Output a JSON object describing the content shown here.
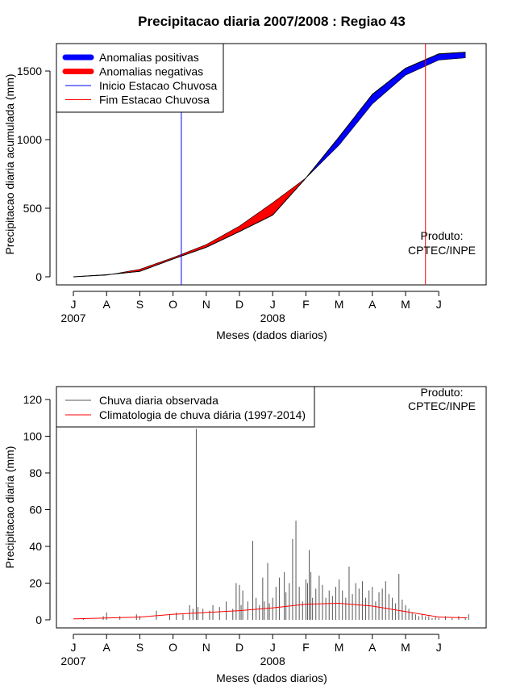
{
  "chart_data": [
    {
      "type": "area",
      "title": "Precipitacao diaria 2007/2008 : Regiao 43",
      "xlabel": "Meses (dados diarios)",
      "ylabel": "Precipitacao diaria acumulada (mm)",
      "ylim": [
        -30,
        1680
      ],
      "yticks": [
        0,
        500,
        1000,
        1500
      ],
      "xticks": [
        "J",
        "A",
        "S",
        "O",
        "N",
        "D",
        "J",
        "F",
        "M",
        "A",
        "M",
        "J"
      ],
      "year_labels": [
        {
          "text": "2007",
          "month_index": 0
        },
        {
          "text": "2008",
          "month_index": 6
        }
      ],
      "legend": {
        "position": "top-left",
        "entries": [
          {
            "label": "Anomalias positivas",
            "color": "#0000ff",
            "style": "thick"
          },
          {
            "label": "Anomalias negativas",
            "color": "#ff0000",
            "style": "thick"
          },
          {
            "label": "Inicio Estacao Chuvosa",
            "color": "#0000ff",
            "style": "thin"
          },
          {
            "label": "Fim Estacao Chuvosa",
            "color": "#ff0000",
            "style": "thin"
          }
        ]
      },
      "annotation": {
        "line1": "Produto:",
        "line2": "CPTEC/INPE",
        "position": "right"
      },
      "rainy_season_start_month": 3.25,
      "rainy_season_end_month": 10.6,
      "month_axis": [
        0,
        1,
        2,
        3,
        4,
        5,
        6,
        7,
        8,
        9,
        10,
        11,
        12
      ],
      "observed_cumulative_mm": [
        0,
        15,
        40,
        130,
        215,
        330,
        450,
        720,
        1020,
        1330,
        1520,
        1625,
        1640
      ],
      "climatology_cumulative_mm": [
        0,
        12,
        55,
        140,
        235,
        370,
        540,
        720,
        960,
        1260,
        1470,
        1580,
        1600
      ]
    },
    {
      "type": "bar",
      "xlabel": "Meses (dados diarios)",
      "ylabel": "Precipitacao diaria (mm)",
      "ylim": [
        -4,
        128
      ],
      "yticks": [
        0,
        20,
        40,
        60,
        80,
        100,
        120
      ],
      "xticks": [
        "J",
        "A",
        "S",
        "O",
        "N",
        "D",
        "J",
        "F",
        "M",
        "A",
        "M",
        "J"
      ],
      "year_labels": [
        {
          "text": "2007",
          "month_index": 0
        },
        {
          "text": "2008",
          "month_index": 6
        }
      ],
      "legend": {
        "position": "top-left",
        "entries": [
          {
            "label": "Chuva diaria observada",
            "color": "#555555"
          },
          {
            "label": "Climatologia de chuva diária (1997-2014)",
            "color": "#ff0000"
          }
        ]
      },
      "annotation": {
        "line1": "Produto:",
        "line2": "CPTEC/INPE",
        "position": "top-right"
      },
      "series": [
        {
          "name": "Chuva diaria observada",
          "month_positions": [
            0.3,
            0.9,
            1.0,
            1.4,
            1.9,
            2.0,
            2.5,
            2.9,
            3.1,
            3.3,
            3.5,
            3.6,
            3.7,
            3.75,
            3.9,
            4.1,
            4.2,
            4.4,
            4.6,
            4.8,
            4.9,
            5.0,
            5.05,
            5.1,
            5.25,
            5.4,
            5.5,
            5.6,
            5.7,
            5.75,
            5.85,
            5.9,
            6.0,
            6.1,
            6.2,
            6.35,
            6.4,
            6.5,
            6.6,
            6.7,
            6.8,
            6.9,
            7.0,
            7.05,
            7.1,
            7.15,
            7.2,
            7.3,
            7.4,
            7.5,
            7.6,
            7.7,
            7.8,
            7.9,
            8.0,
            8.1,
            8.2,
            8.3,
            8.4,
            8.5,
            8.6,
            8.7,
            8.8,
            8.9,
            9.0,
            9.1,
            9.2,
            9.3,
            9.4,
            9.5,
            9.6,
            9.7,
            9.8,
            9.9,
            10.0,
            10.1,
            10.2,
            10.3,
            10.4,
            10.5,
            10.6,
            10.7,
            10.8,
            10.9,
            11.0,
            11.2,
            11.4,
            11.6,
            11.8,
            11.9
          ],
          "values_mm": [
            1,
            2,
            4,
            2,
            3,
            2,
            5,
            3,
            4,
            3,
            8,
            6,
            104,
            7,
            6,
            5,
            8,
            7,
            10,
            6,
            20,
            19,
            8,
            16,
            10,
            43,
            12,
            8,
            23,
            10,
            31,
            9,
            12,
            18,
            23,
            26,
            15,
            20,
            44,
            54,
            18,
            10,
            22,
            20,
            38,
            26,
            12,
            17,
            24,
            19,
            12,
            16,
            13,
            18,
            22,
            16,
            12,
            29,
            14,
            20,
            17,
            21,
            12,
            16,
            18,
            10,
            15,
            17,
            21,
            14,
            12,
            9,
            25,
            11,
            8,
            6,
            4,
            3,
            2,
            3,
            2,
            2,
            1,
            2,
            1,
            2,
            1,
            2,
            1,
            3
          ]
        },
        {
          "name": "Climatologia de chuva diária (1997-2014)",
          "month_axis": [
            0,
            1,
            2,
            3,
            4,
            5,
            6,
            7,
            8,
            9,
            10,
            11,
            12
          ],
          "values_mm": [
            0.5,
            1,
            1.5,
            3,
            4,
            5,
            6.5,
            8.5,
            9,
            7.5,
            4.5,
            1.5,
            1
          ]
        }
      ]
    }
  ]
}
